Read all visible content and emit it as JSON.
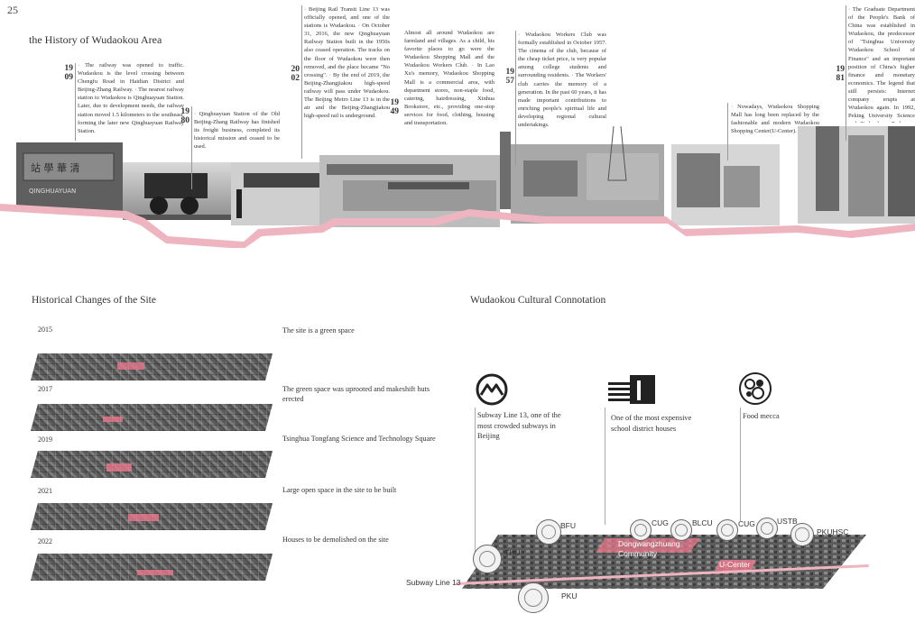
{
  "page_number": "25",
  "history": {
    "title": "the History of Wudaokou Area",
    "entries": [
      {
        "year_a": "19",
        "year_b": "09",
        "text": "· The railway was opened to traffic. Wudaokou is the level crossing between Chengfu Road in Haidian District and Beijing-Zhang Railway. · The nearest railway station to Wudaokou is Qinghuayuan Station. Later, due to development needs, the railway station moved 1.5 kilometers to the southeast, forming the later new Qinghuayuan Railway Station."
      },
      {
        "year_a": "19",
        "year_b": "80",
        "text": "· Qinghuayuan Station of the Old Beijing-Zhang Railway has finished its freight business, completed its historical mission and ceased to be used."
      },
      {
        "year_a": "20",
        "year_b": "02",
        "text": "· Beijing Rail Transit Line 13 was officially opened, and one of the stations is Wudaokou. · On October 31, 2016, the new Qinghuayuan Railway Station built in the 1950s also ceased operation. The tracks on the floor of Wudaokou were then removed, and the place became \"No crossing\". · By the end of 2019, the Beijing-Zhangjiakou high-speed railway will pass under Wudaokou. The Beijing Metro Line 13 is in the air and the Beijing-Zhangjiakou high-speed rail is underground."
      },
      {
        "year_a": "19",
        "year_b": "49",
        "text": "Almost all around Wudaokou are farmland and villages. As a child, his favorite places to go were the Wudaokou Shopping Mall and the Wudaokou Workers Club. · In Lao Xu's memory, Wudaokou Shopping Mall is a commercial area, with department stores, non-staple food, catering, hairdressing, Xinhua Bookstore, etc., providing one-stop services for food, clothing, housing and transportation."
      },
      {
        "year_a": "19",
        "year_b": "57",
        "text": "· Wudaokou Workers Club was formally established in October 1957. The cinema of the club, because of the cheap ticket price, is very popular among college students and surrounding residents. · The Workers' club carries the memory of a generation. In the past 60 years, it has made important contributions to enriching people's spiritual life and developing regional cultural undertakings."
      },
      {
        "year_a": "",
        "year_b": "",
        "text": "· Nowadays, Wudaokou Shopping Mall has long been replaced by the fashionable and modern Wudaokou Shopping Center(U-Center)."
      },
      {
        "year_a": "19",
        "year_b": "81",
        "text": "· The Graduate Department of the People's Bank of China was established in Wudaokou, the predecessor of \"Tsinghua University Wudaokou School of Finance\" and an important position of China's higher finance and monetary economics. The legend that still persists: Internet company erupts at Wudaokou again. In 1992, Peking University Science and Technology Park was born. In 1994, China was connected to the Internet. After them, Wudaokou is a landmark."
      }
    ]
  },
  "changes": {
    "title": "Historical Changes of the Site",
    "rows": [
      {
        "year": "2015",
        "caption": "The site is a green space"
      },
      {
        "year": "2017",
        "caption": "The green space was uprooted and makeshift huts erected"
      },
      {
        "year": "2019",
        "caption": "Tsinghua Tongfang Science and Technology Square"
      },
      {
        "year": "2021",
        "caption": "Large open space in the site to be built"
      },
      {
        "year": "2022",
        "caption": "Houses to be demolished on the site"
      }
    ]
  },
  "culture": {
    "title": "Wudaokou Cultural Connotation",
    "items": [
      {
        "icon": "subway-logo-icon",
        "text": "Subway Line 13, one of the most crowded subways in Beijing"
      },
      {
        "icon": "school-building-icon",
        "text": "One of the most expensive school district houses"
      },
      {
        "icon": "food-plate-icon",
        "text": "Food mecca"
      }
    ],
    "map": {
      "subway_label": "Subway Line 13",
      "community_label": "Dongwangzhuang Community",
      "ucenter_label": "U-Center",
      "pois": [
        "THU",
        "BFU",
        "CUG",
        "BLCU",
        "CUG",
        "USTB",
        "PKUHSC",
        "PKU"
      ]
    }
  },
  "colors": {
    "accent_pink": "#eeb5c1",
    "dark_text": "#333333",
    "photo_grey": "#8a8a8a"
  }
}
